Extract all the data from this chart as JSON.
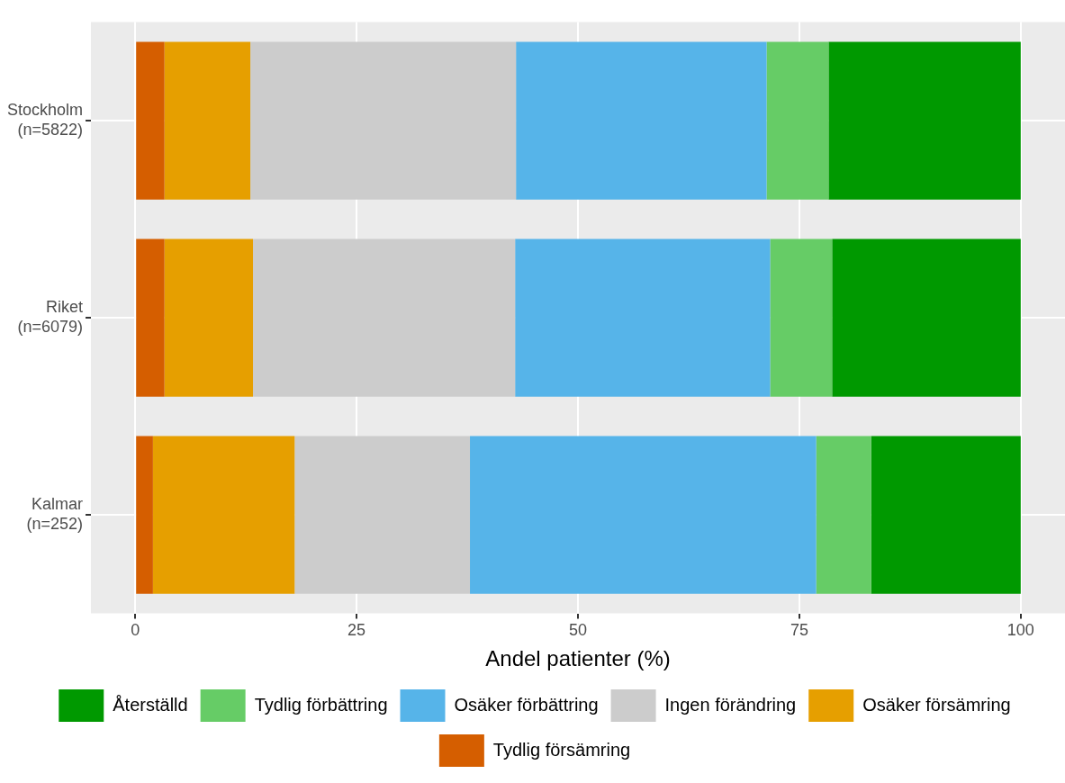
{
  "chart_data": {
    "type": "bar",
    "orientation": "horizontal",
    "stacked": true,
    "xlabel": "Andel patienter (%)",
    "categories": [
      "Stockholm\n(n=5822)",
      "Riket\n(n=6079)",
      "Kalmar\n(n=252)"
    ],
    "series": [
      {
        "name": "Tydlig försämring",
        "color": "#d55e00",
        "values": [
          3.3,
          3.3,
          2.0
        ]
      },
      {
        "name": "Osäker försämring",
        "color": "#e69f00",
        "values": [
          9.7,
          10.0,
          16.0
        ]
      },
      {
        "name": "Ingen förändring",
        "color": "#cccccc",
        "values": [
          30.0,
          29.6,
          19.8
        ]
      },
      {
        "name": "Osäker förbättring",
        "color": "#56b4e9",
        "values": [
          28.3,
          28.8,
          39.1
        ]
      },
      {
        "name": "Tydlig förbättring",
        "color": "#66cc66",
        "values": [
          7.0,
          7.0,
          6.2
        ]
      },
      {
        "name": "Återställd",
        "color": "#009900",
        "values": [
          21.7,
          21.3,
          16.9
        ]
      }
    ],
    "xlim": [
      -5,
      105
    ],
    "xticks": [
      0,
      25,
      50,
      75,
      100
    ],
    "grid": true,
    "legend": "bottom"
  }
}
